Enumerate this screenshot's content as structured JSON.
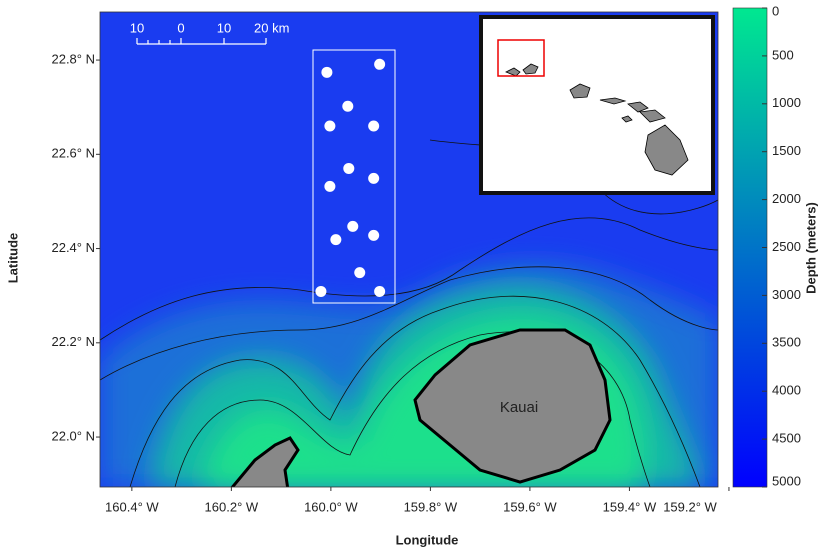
{
  "chart_data": {
    "type": "scatter",
    "x_label": "Longitude",
    "y_label": "Latitude",
    "x": [
      160.008,
      159.902,
      159.966,
      160.002,
      159.914,
      159.964,
      160.002,
      159.914,
      159.956,
      159.99,
      159.914,
      159.942,
      160.02,
      159.902
    ],
    "y": [
      22.774,
      22.791,
      22.702,
      22.66,
      22.66,
      22.57,
      22.532,
      22.549,
      22.447,
      22.419,
      22.428,
      22.349,
      22.309,
      22.309
    ],
    "color": "#ffffff",
    "xlim": [
      160.464,
      159.222
    ],
    "ylim": [
      21.894,
      22.902
    ],
    "xticks": [
      {
        "value": 160.4,
        "label": "160.4° W"
      },
      {
        "value": 160.2,
        "label": "160.2° W"
      },
      {
        "value": 160.0,
        "label": "160.0° W"
      },
      {
        "value": 159.8,
        "label": "159.8° W"
      },
      {
        "value": 159.6,
        "label": "159.6° W"
      },
      {
        "value": 159.4,
        "label": "159.4° W"
      },
      {
        "value": 159.2,
        "label": "159.2° W"
      }
    ],
    "yticks": [
      {
        "value": 22.0,
        "label": "22.0° N"
      },
      {
        "value": 22.2,
        "label": "22.2° N"
      },
      {
        "value": 22.4,
        "label": "22.4° N"
      },
      {
        "value": 22.6,
        "label": "22.6° N"
      },
      {
        "value": 22.8,
        "label": "22.8° N"
      }
    ],
    "colorbar": {
      "label": "Depth (meters)",
      "lim": [
        0,
        5000
      ],
      "ticks": [
        0,
        500,
        1000,
        1500,
        2000,
        2500,
        3000,
        3500,
        4000,
        4500,
        5000
      ],
      "colors": [
        "#00e890",
        "#0000ff"
      ]
    },
    "annotation": "Kauai",
    "scale_bar": [
      "10",
      "0",
      "10",
      "20 km"
    ]
  }
}
